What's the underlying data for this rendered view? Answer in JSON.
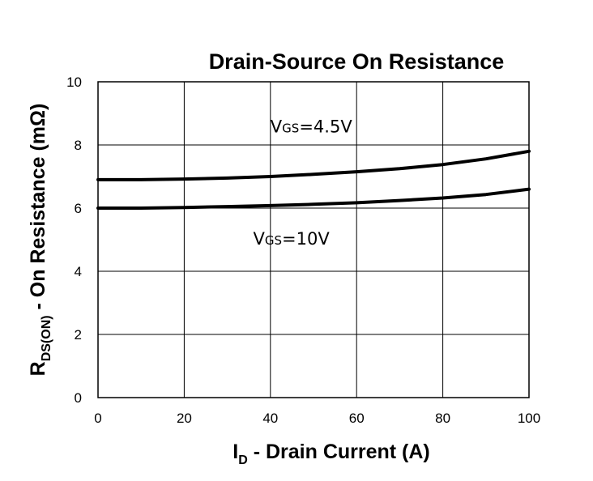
{
  "chart_data": {
    "type": "line",
    "title": "Drain-Source On Resistance",
    "xlabel": {
      "main": "I",
      "sub": "D",
      "rest": " - Drain Current (A)"
    },
    "ylabel": {
      "main": "R",
      "sub": "DS(ON)",
      "rest": " - On Resistance (mΩ)"
    },
    "xlim": [
      0,
      100
    ],
    "ylim": [
      0,
      10
    ],
    "xticks": [
      "0",
      "20",
      "40",
      "60",
      "80",
      "100"
    ],
    "yticks": [
      "0",
      "2",
      "4",
      "6",
      "8",
      "10"
    ],
    "grid": true,
    "series": [
      {
        "name": "VGS=4.5V",
        "x": [
          0,
          10,
          20,
          30,
          40,
          50,
          60,
          70,
          80,
          90,
          100
        ],
        "y": [
          6.9,
          6.9,
          6.92,
          6.95,
          7.0,
          7.07,
          7.15,
          7.25,
          7.38,
          7.56,
          7.8
        ]
      },
      {
        "name": "VGS=10V",
        "x": [
          0,
          10,
          20,
          30,
          40,
          50,
          60,
          70,
          80,
          90,
          100
        ],
        "y": [
          6.0,
          6.0,
          6.02,
          6.05,
          6.08,
          6.12,
          6.17,
          6.24,
          6.32,
          6.43,
          6.6
        ]
      }
    ],
    "annotations": [
      {
        "main": "V",
        "sub": "GS",
        "rest": "=4.5V",
        "x": 40,
        "y": 8.4
      },
      {
        "main": "V",
        "sub": "GS",
        "rest": "=10V",
        "x": 36,
        "y": 4.85
      }
    ]
  }
}
